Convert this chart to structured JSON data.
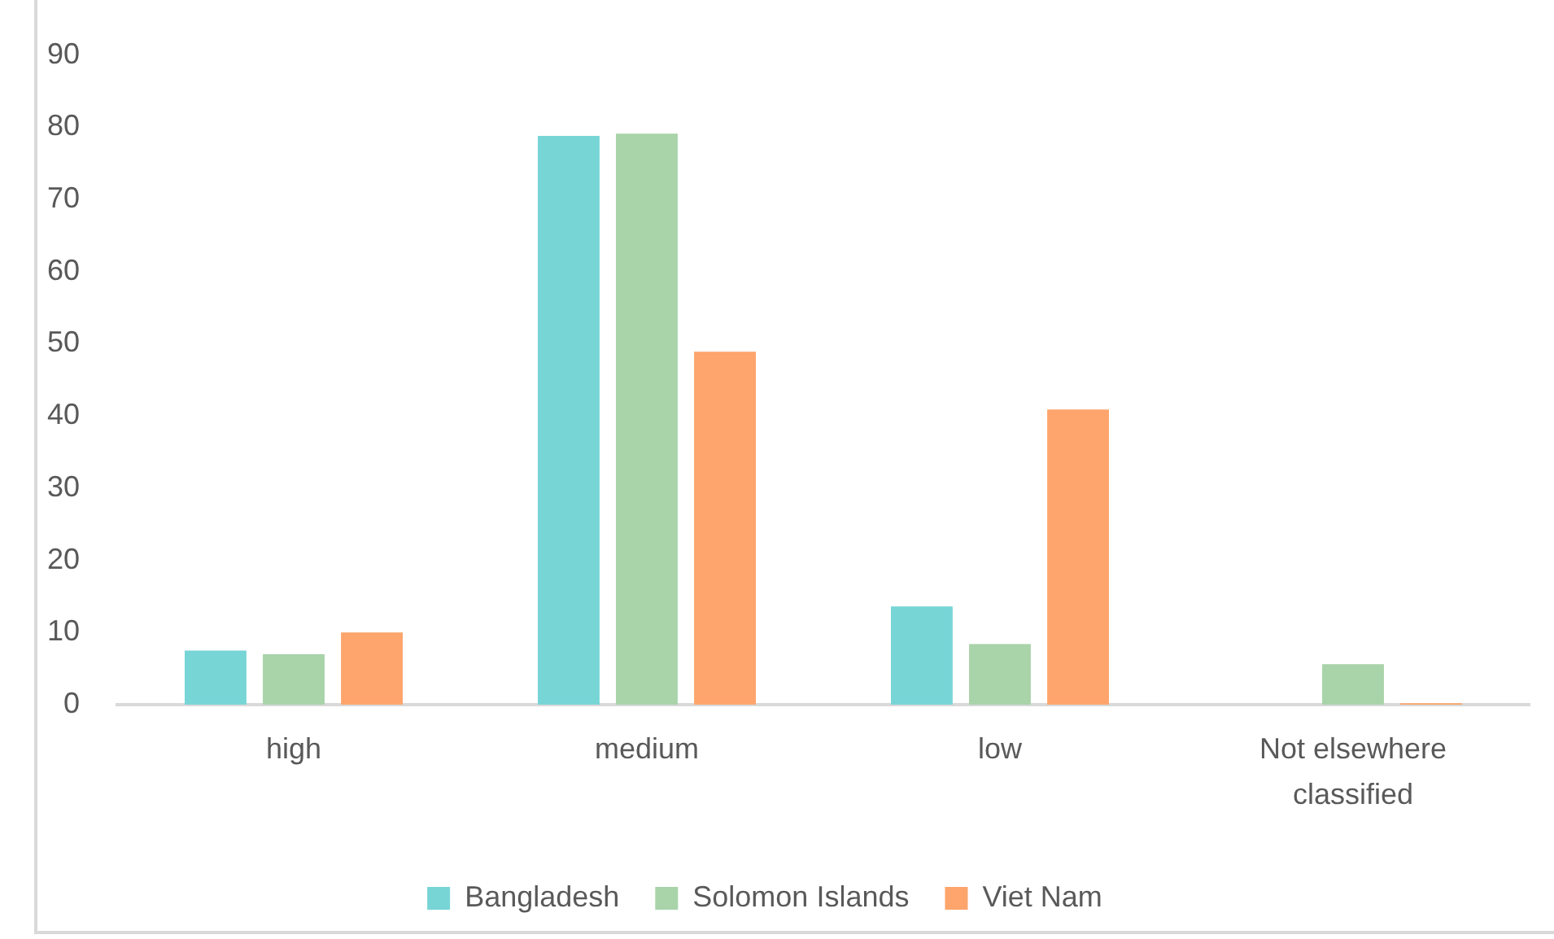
{
  "chart_data": {
    "type": "bar",
    "categories": [
      "high",
      "medium",
      "low",
      "Not elsewhere classified"
    ],
    "series": [
      {
        "name": "Bangladesh",
        "color": "#78d5d6",
        "values": [
          7.5,
          78.8,
          13.6,
          0
        ]
      },
      {
        "name": "Solomon Islands",
        "color": "#a9d3a9",
        "values": [
          7,
          79.1,
          8.4,
          5.6
        ]
      },
      {
        "name": "Viet Nam",
        "color": "#fda56c",
        "values": [
          10,
          48.9,
          40.9,
          0.2
        ]
      }
    ],
    "ylim": [
      0,
      90
    ],
    "yticks": [
      0,
      10,
      20,
      30,
      40,
      50,
      60,
      70,
      80,
      90
    ],
    "grid": false,
    "legend": "bottom"
  }
}
